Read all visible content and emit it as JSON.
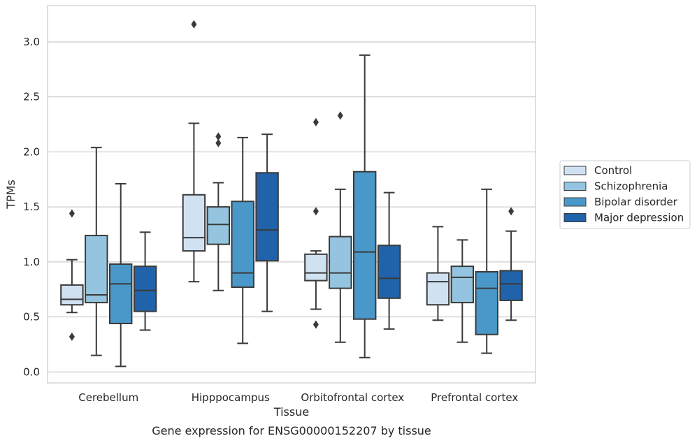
{
  "caption": "Gene expression for ENSG00000152207 by tissue",
  "chart_data": {
    "type": "box",
    "title": "",
    "xlabel": "Tissue",
    "ylabel": "TPMs",
    "ylim": [
      -0.1,
      3.33
    ],
    "yticks": [
      "0.0",
      "0.5",
      "1.0",
      "1.5",
      "2.0",
      "2.5",
      "3.0"
    ],
    "grid": "horizontal",
    "legend_position": "right",
    "categories": [
      "Cerebellum",
      "Hipppocampus",
      "Orbitofrontal cortex",
      "Prefrontal cortex"
    ],
    "series": [
      {
        "name": "Control",
        "color": "#d0e1f2",
        "boxes": [
          {
            "whislo": 0.54,
            "q1": 0.61,
            "med": 0.66,
            "q3": 0.79,
            "whishi": 1.02,
            "fliers": [
              1.44,
              0.32
            ]
          },
          {
            "whislo": 0.82,
            "q1": 1.1,
            "med": 1.22,
            "q3": 1.61,
            "whishi": 2.26,
            "fliers": [
              3.16
            ]
          },
          {
            "whislo": 0.57,
            "q1": 0.83,
            "med": 0.9,
            "q3": 1.07,
            "whishi": 1.1,
            "fliers": [
              2.27,
              1.46,
              0.43
            ]
          },
          {
            "whislo": 0.47,
            "q1": 0.61,
            "med": 0.82,
            "q3": 0.9,
            "whishi": 1.32,
            "fliers": []
          }
        ]
      },
      {
        "name": "Schizophrenia",
        "color": "#94c4df",
        "boxes": [
          {
            "whislo": 0.15,
            "q1": 0.63,
            "med": 0.7,
            "q3": 1.24,
            "whishi": 2.04,
            "fliers": []
          },
          {
            "whislo": 0.74,
            "q1": 1.16,
            "med": 1.34,
            "q3": 1.5,
            "whishi": 1.72,
            "fliers": [
              2.14,
              2.08
            ]
          },
          {
            "whislo": 0.27,
            "q1": 0.76,
            "med": 0.9,
            "q3": 1.23,
            "whishi": 1.66,
            "fliers": [
              2.33
            ]
          },
          {
            "whislo": 0.27,
            "q1": 0.63,
            "med": 0.86,
            "q3": 0.96,
            "whishi": 1.2,
            "fliers": []
          }
        ]
      },
      {
        "name": "Bipolar disorder",
        "color": "#4a98c9",
        "boxes": [
          {
            "whislo": 0.05,
            "q1": 0.44,
            "med": 0.8,
            "q3": 0.98,
            "whishi": 1.71,
            "fliers": []
          },
          {
            "whislo": 0.26,
            "q1": 0.77,
            "med": 0.9,
            "q3": 1.55,
            "whishi": 2.13,
            "fliers": []
          },
          {
            "whislo": 0.13,
            "q1": 0.48,
            "med": 1.09,
            "q3": 1.82,
            "whishi": 2.88,
            "fliers": []
          },
          {
            "whislo": 0.17,
            "q1": 0.34,
            "med": 0.76,
            "q3": 0.91,
            "whishi": 1.66,
            "fliers": []
          }
        ]
      },
      {
        "name": "Major depression",
        "color": "#2163aa",
        "boxes": [
          {
            "whislo": 0.38,
            "q1": 0.55,
            "med": 0.74,
            "q3": 0.96,
            "whishi": 1.27,
            "fliers": []
          },
          {
            "whislo": 0.55,
            "q1": 1.01,
            "med": 1.29,
            "q3": 1.81,
            "whishi": 2.16,
            "fliers": []
          },
          {
            "whislo": 0.39,
            "q1": 0.67,
            "med": 0.85,
            "q3": 1.15,
            "whishi": 1.63,
            "fliers": []
          },
          {
            "whislo": 0.47,
            "q1": 0.65,
            "med": 0.8,
            "q3": 0.92,
            "whishi": 1.28,
            "fliers": [
              1.46
            ]
          }
        ]
      }
    ]
  }
}
